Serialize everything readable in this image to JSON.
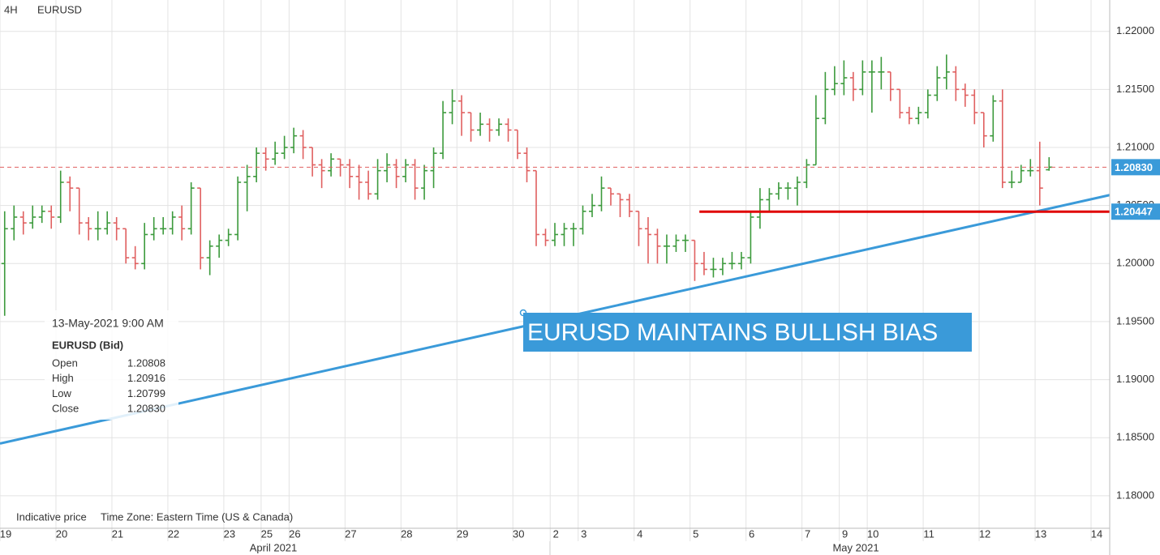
{
  "chart_data": {
    "type": "ohlc",
    "timeframe": "4H",
    "title": "EURUSD",
    "up_color": "#3c9a3c",
    "down_color": "#e06060",
    "grid": true,
    "xlim": [
      0,
      119
    ],
    "ylim": [
      1.1772,
      1.2227
    ],
    "yticks": [
      {
        "value": 1.18,
        "label": "1.18000"
      },
      {
        "value": 1.185,
        "label": "1.18500"
      },
      {
        "value": 1.19,
        "label": "1.19000"
      },
      {
        "value": 1.195,
        "label": "1.19500"
      },
      {
        "value": 1.2,
        "label": "1.20000"
      },
      {
        "value": 1.205,
        "label": "1.20500"
      },
      {
        "value": 1.21,
        "label": "1.21000"
      },
      {
        "value": 1.215,
        "label": "1.21500"
      },
      {
        "value": 1.22,
        "label": "1.22000"
      }
    ],
    "xticks": [
      {
        "value": 0,
        "label": "19"
      },
      {
        "value": 6,
        "label": "20"
      },
      {
        "value": 12,
        "label": "21"
      },
      {
        "value": 18,
        "label": "22"
      },
      {
        "value": 24,
        "label": "23"
      },
      {
        "value": 28,
        "label": "25"
      },
      {
        "value": 31,
        "label": "26"
      },
      {
        "value": 37,
        "label": "27"
      },
      {
        "value": 43,
        "label": "28"
      },
      {
        "value": 49,
        "label": "29"
      },
      {
        "value": 55,
        "label": "30"
      },
      {
        "value": 59,
        "label": "2"
      },
      {
        "value": 62,
        "label": "3"
      },
      {
        "value": 68,
        "label": "4"
      },
      {
        "value": 74,
        "label": "5"
      },
      {
        "value": 80,
        "label": "6"
      },
      {
        "value": 86,
        "label": "7"
      },
      {
        "value": 90,
        "label": "9"
      },
      {
        "value": 93,
        "label": "10"
      },
      {
        "value": 99,
        "label": "11"
      },
      {
        "value": 105,
        "label": "12"
      },
      {
        "value": 111,
        "label": "13"
      },
      {
        "value": 117,
        "label": "14"
      }
    ],
    "x_groups": [
      "April 2021",
      "May 2021"
    ],
    "x": [
      0.5,
      1.5,
      2.5,
      3.5,
      4.5,
      5.5,
      6.5,
      7.5,
      8.5,
      9.5,
      10.5,
      11.5,
      12.5,
      13.5,
      14.5,
      15.5,
      16.5,
      17.5,
      18.5,
      19.5,
      20.5,
      21.5,
      22.5,
      23.5,
      24.5,
      25.5,
      26.5,
      27.5,
      28.5,
      29.5,
      30.5,
      31.5,
      32.5,
      33.5,
      34.5,
      35.5,
      36.5,
      37.5,
      38.5,
      39.5,
      40.5,
      41.5,
      42.5,
      43.5,
      44.5,
      45.5,
      46.5,
      47.5,
      48.5,
      49.5,
      50.5,
      51.5,
      52.5,
      53.5,
      54.5,
      55.5,
      56.5,
      57.5,
      58.5,
      59.5,
      60.5,
      61.5,
      62.5,
      63.5,
      64.5,
      65.5,
      66.5,
      67.5,
      68.5,
      69.5,
      70.5,
      71.5,
      72.5,
      73.5,
      74.5,
      75.5,
      76.5,
      77.5,
      78.5,
      79.5,
      80.5,
      81.5,
      82.5,
      83.5,
      84.5,
      85.5,
      86.5,
      87.5,
      88.5,
      89.5,
      90.5,
      91.5,
      92.5,
      93.5,
      94.5,
      95.5,
      96.5,
      97.5,
      98.5,
      99.5,
      100.5,
      101.5,
      102.5,
      103.5,
      104.5,
      105.5,
      106.5,
      107.5,
      108.5,
      109.5,
      110.5,
      111.5,
      112.5
    ],
    "open": [
      1.2,
      1.203,
      1.204,
      1.2035,
      1.204,
      1.2045,
      1.204,
      1.207,
      1.2065,
      1.2035,
      1.203,
      1.203,
      1.2035,
      1.203,
      1.2005,
      1.2,
      1.2025,
      1.203,
      1.203,
      1.204,
      1.203,
      1.2065,
      1.2005,
      1.2015,
      1.202,
      1.2025,
      1.207,
      1.2075,
      1.2095,
      1.209,
      1.2095,
      1.21,
      1.211,
      1.21,
      1.2085,
      1.208,
      1.209,
      1.2085,
      1.2075,
      1.207,
      1.206,
      1.208,
      1.2085,
      1.2075,
      1.2085,
      1.2065,
      1.208,
      1.2095,
      1.213,
      1.214,
      1.213,
      1.2115,
      1.212,
      1.2115,
      1.212,
      1.2115,
      1.2095,
      1.208,
      1.2025,
      1.202,
      1.2025,
      1.203,
      1.203,
      1.2045,
      1.205,
      1.2065,
      1.206,
      1.2055,
      1.2045,
      1.203,
      1.2025,
      1.2015,
      1.2015,
      1.202,
      1.202,
      1.2,
      1.1995,
      1.1995,
      1.2,
      1.2,
      1.2005,
      1.204,
      1.2055,
      1.206,
      1.2065,
      1.2065,
      1.207,
      1.2085,
      1.2125,
      1.215,
      1.2155,
      1.216,
      1.215,
      1.2165,
      1.2165,
      1.2165,
      1.215,
      1.213,
      1.2125,
      1.213,
      1.2145,
      1.216,
      1.2165,
      1.215,
      1.2145,
      1.213,
      1.211,
      1.214,
      1.207,
      1.207,
      1.208,
      1.208,
      1.20808
    ],
    "high": [
      1.2045,
      1.205,
      1.2045,
      1.205,
      1.205,
      1.205,
      1.208,
      1.2075,
      1.2065,
      1.204,
      1.2045,
      1.2045,
      1.204,
      1.203,
      1.2015,
      1.2035,
      1.204,
      1.204,
      1.2045,
      1.205,
      1.207,
      1.2065,
      1.202,
      1.2025,
      1.203,
      1.2075,
      1.2085,
      1.21,
      1.21,
      1.2105,
      1.211,
      1.2117,
      1.2115,
      1.21,
      1.209,
      1.2095,
      1.209,
      1.209,
      1.2085,
      1.208,
      1.209,
      1.2095,
      1.209,
      1.209,
      1.209,
      1.2085,
      1.21,
      1.214,
      1.215,
      1.2145,
      1.213,
      1.213,
      1.2125,
      1.2125,
      1.2125,
      1.2115,
      1.21,
      1.208,
      1.203,
      1.2035,
      1.2035,
      1.2035,
      1.205,
      1.206,
      1.2075,
      1.2065,
      1.206,
      1.206,
      1.2045,
      1.204,
      1.203,
      1.2025,
      1.2025,
      1.2025,
      1.202,
      1.201,
      1.2005,
      1.2005,
      1.201,
      1.201,
      1.2045,
      1.2065,
      1.2065,
      1.207,
      1.207,
      1.2075,
      1.209,
      1.2145,
      1.2165,
      1.217,
      1.2175,
      1.2165,
      1.2175,
      1.2175,
      1.2178,
      1.2165,
      1.215,
      1.2135,
      1.2135,
      1.215,
      1.217,
      1.218,
      1.217,
      1.2155,
      1.215,
      1.213,
      1.2145,
      1.215,
      1.208,
      1.2085,
      1.209,
      1.2105,
      1.20916
    ],
    "low": [
      1.1955,
      1.202,
      1.2025,
      1.203,
      1.2035,
      1.203,
      1.2035,
      1.2045,
      1.2025,
      1.202,
      1.202,
      1.2025,
      1.202,
      1.2,
      1.1995,
      1.1995,
      1.202,
      1.2025,
      1.2025,
      1.202,
      1.2025,
      1.1995,
      1.199,
      1.2005,
      1.2015,
      1.202,
      1.2045,
      1.207,
      1.208,
      1.2085,
      1.209,
      1.2095,
      1.209,
      1.2075,
      1.2065,
      1.2075,
      1.2075,
      1.2065,
      1.2055,
      1.2055,
      1.2055,
      1.207,
      1.2065,
      1.207,
      1.2055,
      1.2055,
      1.2065,
      1.209,
      1.212,
      1.211,
      1.2105,
      1.211,
      1.2105,
      1.211,
      1.2105,
      1.209,
      1.207,
      1.2015,
      1.2015,
      1.2015,
      1.2015,
      1.2015,
      1.2025,
      1.204,
      1.2045,
      1.205,
      1.204,
      1.204,
      1.2015,
      1.2,
      1.2,
      1.2,
      1.201,
      1.201,
      1.1985,
      1.199,
      1.1988,
      1.199,
      1.1995,
      1.1995,
      1.2,
      1.203,
      1.2045,
      1.2055,
      1.2055,
      1.205,
      1.2065,
      1.2085,
      1.212,
      1.2145,
      1.2145,
      1.214,
      1.2145,
      1.213,
      1.215,
      1.214,
      1.2125,
      1.212,
      1.212,
      1.2125,
      1.214,
      1.215,
      1.214,
      1.2135,
      1.212,
      1.21,
      1.2105,
      1.2065,
      1.2065,
      1.207,
      1.2075,
      1.205,
      1.20799
    ],
    "close": [
      1.203,
      1.204,
      1.2035,
      1.204,
      1.2045,
      1.204,
      1.207,
      1.2065,
      1.2035,
      1.203,
      1.203,
      1.2035,
      1.203,
      1.2005,
      1.2,
      1.2025,
      1.203,
      1.203,
      1.204,
      1.203,
      1.2065,
      1.2005,
      1.2015,
      1.202,
      1.2025,
      1.207,
      1.2075,
      1.2095,
      1.209,
      1.2095,
      1.21,
      1.211,
      1.21,
      1.2085,
      1.208,
      1.209,
      1.2085,
      1.2075,
      1.207,
      1.206,
      1.208,
      1.2085,
      1.2075,
      1.2085,
      1.2065,
      1.208,
      1.2095,
      1.213,
      1.214,
      1.213,
      1.2115,
      1.212,
      1.2115,
      1.212,
      1.2115,
      1.2095,
      1.208,
      1.2025,
      1.202,
      1.2025,
      1.203,
      1.203,
      1.2045,
      1.205,
      1.2065,
      1.206,
      1.2055,
      1.2045,
      1.203,
      1.2025,
      1.2015,
      1.2015,
      1.202,
      1.202,
      1.2,
      1.1995,
      1.1995,
      1.2,
      1.2,
      1.2005,
      1.204,
      1.2055,
      1.206,
      1.2065,
      1.2065,
      1.207,
      1.2085,
      1.2125,
      1.215,
      1.2155,
      1.216,
      1.215,
      1.2165,
      1.2165,
      1.2165,
      1.215,
      1.213,
      1.2125,
      1.213,
      1.2145,
      1.216,
      1.2165,
      1.215,
      1.2145,
      1.213,
      1.211,
      1.214,
      1.207,
      1.207,
      1.208,
      1.208,
      1.2065,
      1.2083
    ],
    "price_lines": [
      {
        "value": 1.2083,
        "label": "1.20830",
        "color": "#e06060",
        "dashed": true,
        "x_start": 0
      },
      {
        "value": 1.20447,
        "label": "1.20447",
        "color": "#e00000",
        "dashed": false,
        "x_start": 75
      }
    ],
    "trendline": {
      "x": [
        0,
        119
      ],
      "y": [
        1.1845,
        1.2059
      ],
      "color": "#3a9ad9"
    },
    "annotation": "EURUSD MAINTAINS BULLISH BIAS",
    "tooltip": {
      "time": "13-May-2021 9:00 AM",
      "symbol": "EURUSD (Bid)",
      "rows": [
        [
          "Open",
          "1.20808"
        ],
        [
          "High",
          "1.20916"
        ],
        [
          "Low",
          "1.20799"
        ],
        [
          "Close",
          "1.20830"
        ]
      ]
    },
    "footer": [
      "Indicative price",
      "Time Zone: Eastern Time (US & Canada)"
    ]
  }
}
